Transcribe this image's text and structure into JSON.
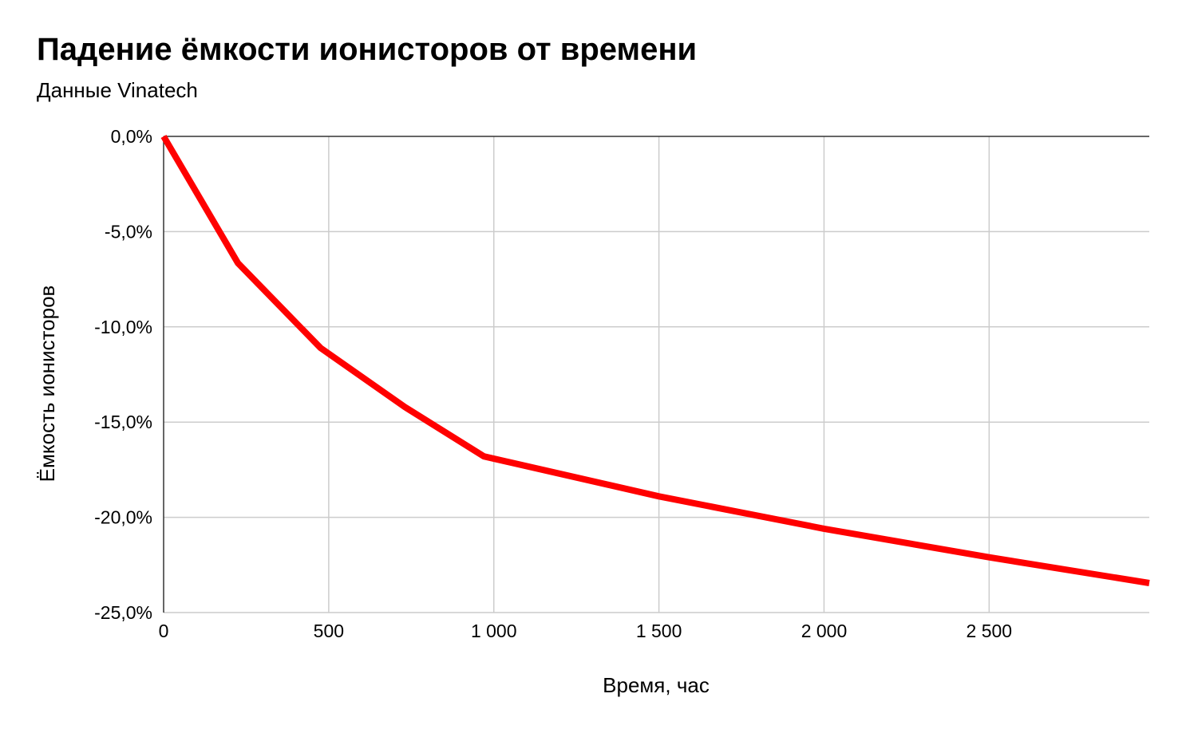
{
  "chart_data": {
    "type": "line",
    "title": "Падение ёмкости ионисторов от времени",
    "subtitle": "Данные Vinatech",
    "xlabel": "Время, час",
    "ylabel": "Ёмкость ионисторов",
    "xlim": [
      0,
      2985
    ],
    "ylim": [
      -25,
      0
    ],
    "xticks": [
      0,
      500,
      1000,
      1500,
      2000,
      2500
    ],
    "xtick_labels": [
      "0",
      "500",
      "1 000",
      "1 500",
      "2 000",
      "2 500"
    ],
    "yticks": [
      0,
      -5,
      -10,
      -15,
      -20,
      -25
    ],
    "ytick_labels": [
      "0,0%",
      "-5,0%",
      "-10,0%",
      "-15,0%",
      "-20,0%",
      "-25,0%"
    ],
    "grid": true,
    "series": [
      {
        "color": "#ff0000",
        "x": [
          0,
          225,
          475,
          730,
          970,
          1500,
          2000,
          2500,
          2985
        ],
        "y": [
          0,
          -6.65,
          -11.1,
          -14.2,
          -16.8,
          -18.9,
          -20.6,
          -22.1,
          -23.45
        ]
      }
    ]
  }
}
